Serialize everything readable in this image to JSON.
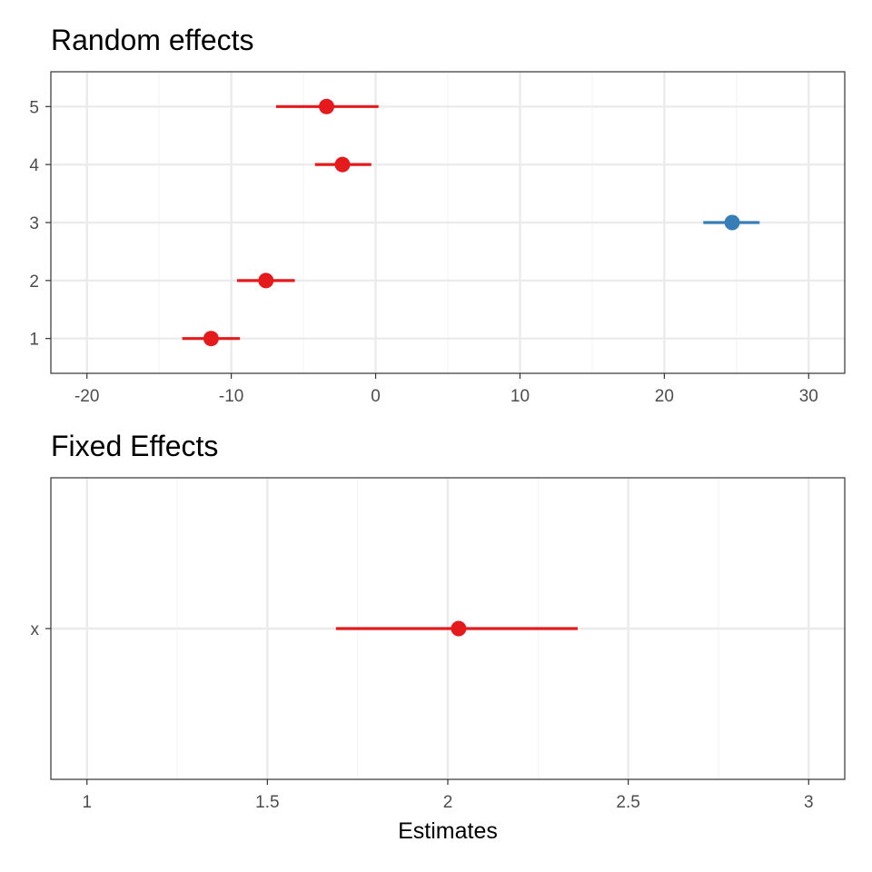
{
  "chart_data": [
    {
      "type": "forest",
      "title": "Random effects",
      "xlim": [
        -22.5,
        32.5
      ],
      "x_ticks": [
        -20,
        -10,
        0,
        10,
        20,
        30
      ],
      "x_tick_labels": [
        "-20",
        "-10",
        "0",
        "10",
        "20",
        "30"
      ],
      "x_minor_ticks": [
        -15,
        -5,
        5,
        15,
        25
      ],
      "categories": [
        "1",
        "2",
        "3",
        "4",
        "5"
      ],
      "points": [
        {
          "category": "1",
          "estimate": -11.4,
          "lower": -13.4,
          "upper": -9.4,
          "color": "#e41a1c"
        },
        {
          "category": "2",
          "estimate": -7.6,
          "lower": -9.6,
          "upper": -5.6,
          "color": "#e41a1c"
        },
        {
          "category": "3",
          "estimate": 24.7,
          "lower": 22.7,
          "upper": 26.6,
          "color": "#377eb8"
        },
        {
          "category": "4",
          "estimate": -2.3,
          "lower": -4.2,
          "upper": -0.3,
          "color": "#e41a1c"
        },
        {
          "category": "5",
          "estimate": -3.4,
          "lower": -6.9,
          "upper": 0.2,
          "color": "#e41a1c"
        }
      ],
      "xlabel": "",
      "grid": true
    },
    {
      "type": "forest",
      "title": "Fixed Effects",
      "xlim": [
        0.9,
        3.1
      ],
      "x_ticks": [
        1,
        1.5,
        2,
        2.5,
        3
      ],
      "x_tick_labels": [
        "1",
        "1.5",
        "2",
        "2.5",
        "3"
      ],
      "x_minor_ticks": [
        1.25,
        1.75,
        2.25,
        2.75
      ],
      "categories": [
        "x"
      ],
      "points": [
        {
          "category": "x",
          "estimate": 2.03,
          "lower": 1.69,
          "upper": 2.36,
          "color": "#e41a1c"
        }
      ],
      "xlabel": "Estimates",
      "grid": true
    }
  ],
  "colors": {
    "positive": "#377eb8",
    "negative": "#e41a1c",
    "grid_major": "#ebebeb",
    "grid_minor": "#f5f5f5",
    "panel_border": "#333333",
    "tick_text": "#4d4d4d"
  }
}
